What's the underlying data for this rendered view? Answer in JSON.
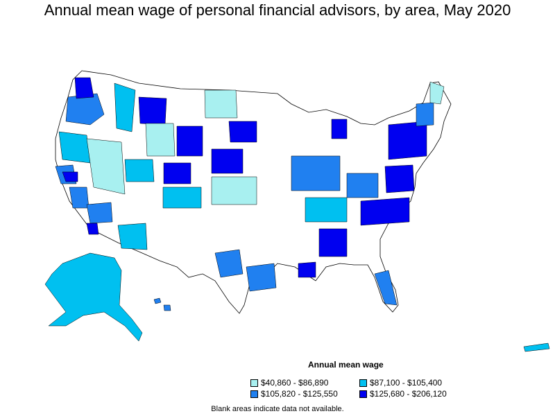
{
  "title": "Annual mean wage of personal financial advisors, by area, May 2020",
  "legend": {
    "title": "Annual mean wage",
    "items": [
      {
        "label": "$40,860 - $86,890",
        "color": "#a8f0f0"
      },
      {
        "label": "$87,100 - $105,400",
        "color": "#00c0f0"
      },
      {
        "label": "$105,820 - $125,550",
        "color": "#2080f0"
      },
      {
        "label": "$125,680 - $206,120",
        "color": "#0000f0"
      }
    ]
  },
  "note": "Blank areas indicate data not available.",
  "colors": {
    "outline": "#000000",
    "no_data": "#ffffff"
  },
  "regions": [
    {
      "name": "pacific-northwest",
      "level": 2
    },
    {
      "name": "puget-sound",
      "level": 3
    },
    {
      "name": "oregon-coast",
      "level": 1
    },
    {
      "name": "northern-california",
      "level": 2
    },
    {
      "name": "bay-area",
      "level": 3
    },
    {
      "name": "central-valley",
      "level": 2
    },
    {
      "name": "southern-california",
      "level": 2
    },
    {
      "name": "los-angeles",
      "level": 3
    },
    {
      "name": "nevada",
      "level": 0
    },
    {
      "name": "arizona",
      "level": 1
    },
    {
      "name": "idaho",
      "level": 1
    },
    {
      "name": "western-montana",
      "level": 3
    },
    {
      "name": "wyoming",
      "level": 0
    },
    {
      "name": "wyoming-north",
      "level": 3
    },
    {
      "name": "colorado",
      "level": 3
    },
    {
      "name": "utah",
      "level": 1
    },
    {
      "name": "new-mexico",
      "level": 1
    },
    {
      "name": "north-dakota",
      "level": 0
    },
    {
      "name": "minnesota",
      "level": 3
    },
    {
      "name": "nebraska",
      "level": 3
    },
    {
      "name": "kansas",
      "level": 0
    },
    {
      "name": "texas",
      "level": 2
    },
    {
      "name": "houston",
      "level": 2
    },
    {
      "name": "louisiana",
      "level": 3
    },
    {
      "name": "midwest",
      "level": 2
    },
    {
      "name": "michigan",
      "level": 3
    },
    {
      "name": "ohio-valley",
      "level": 1
    },
    {
      "name": "tennessee",
      "level": 2
    },
    {
      "name": "georgia",
      "level": 3
    },
    {
      "name": "carolinas",
      "level": 3
    },
    {
      "name": "virginia",
      "level": 3
    },
    {
      "name": "northeast",
      "level": 3
    },
    {
      "name": "new-england",
      "level": 2
    },
    {
      "name": "maine",
      "level": 0
    },
    {
      "name": "florida",
      "level": 2
    },
    {
      "name": "alaska",
      "level": 1
    },
    {
      "name": "hawaii",
      "level": 2
    },
    {
      "name": "puerto-rico",
      "level": 1
    }
  ]
}
